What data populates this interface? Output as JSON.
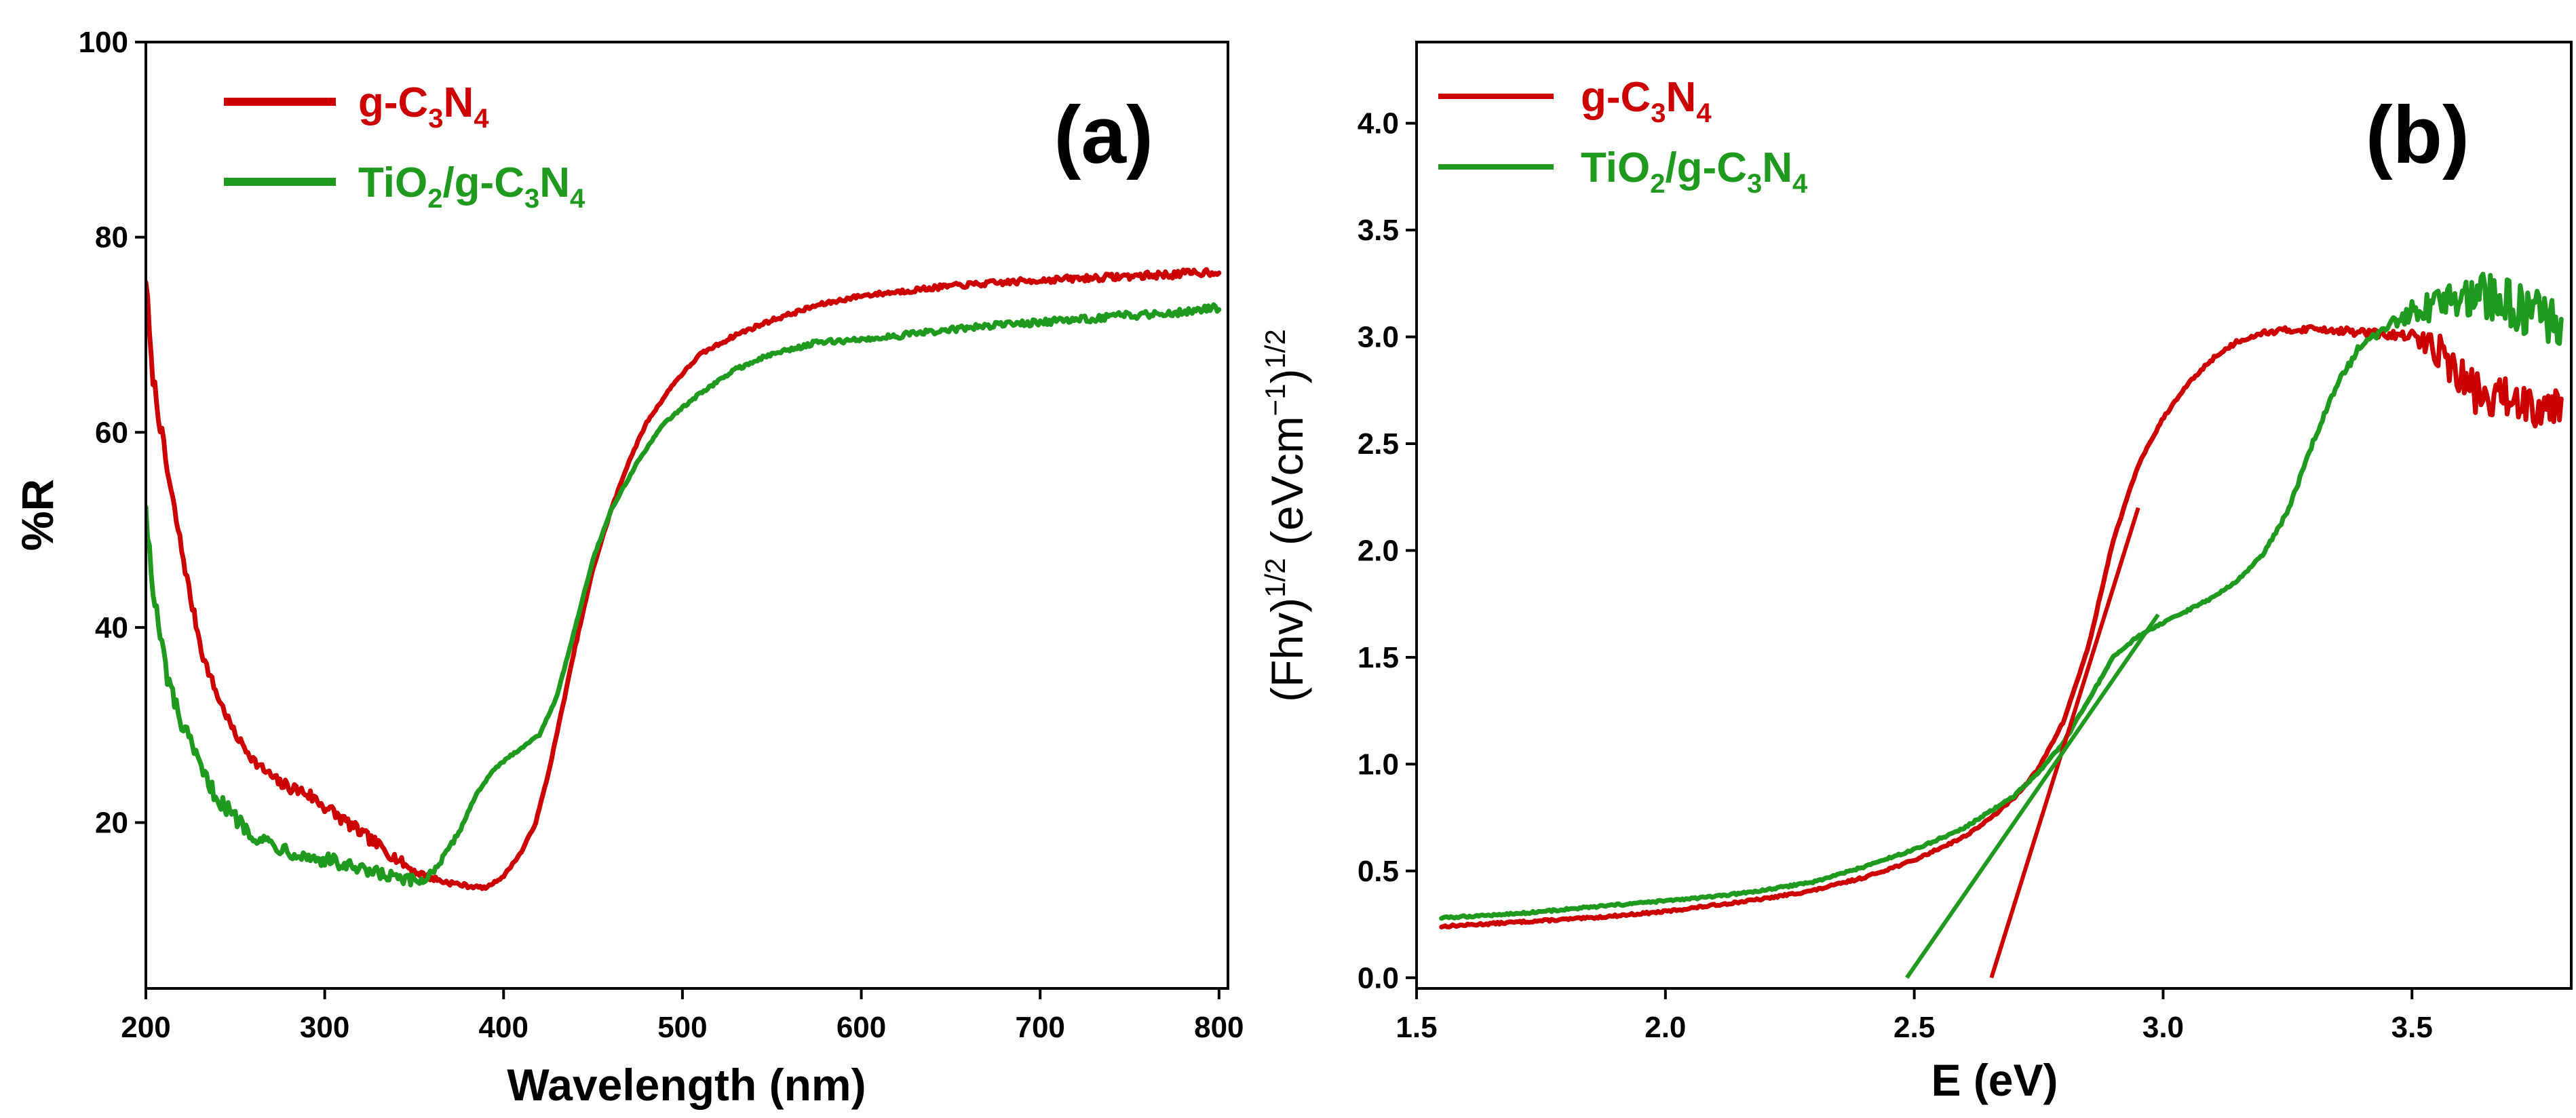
{
  "colors": {
    "red": "#cc0000",
    "green": "#1f9a1f"
  },
  "chart_data": [
    {
      "id": "a",
      "type": "line",
      "panel_label": "(a)",
      "xlabel": "Wavelength (nm)",
      "ylabel": "%R",
      "xlim": [
        200,
        805
      ],
      "ylim": [
        3,
        100
      ],
      "xticks": [
        200,
        300,
        400,
        500,
        600,
        700,
        800
      ],
      "xtick_labels": [
        "200",
        "300",
        "400",
        "500",
        "600",
        "700",
        "800"
      ],
      "yticks": [
        20,
        40,
        60,
        80,
        100
      ],
      "ytick_labels": [
        "20",
        "40",
        "60",
        "80",
        "100"
      ],
      "legend": {
        "position": "top-left",
        "entries": [
          {
            "base": "g-C",
            "sub1": "3",
            "mid": "N",
            "sub2": "4",
            "color": "red"
          },
          {
            "base": "TiO",
            "sub0": "2",
            "mid0": "/g-C",
            "sub1": "3",
            "mid": "N",
            "sub2": "4",
            "color": "green"
          }
        ]
      },
      "series": [
        {
          "name": "g-C3N4",
          "color": "red",
          "x": [
            200,
            203,
            207,
            212,
            218,
            225,
            232,
            240,
            250,
            262,
            275,
            290,
            305,
            320,
            335,
            350,
            365,
            380,
            390,
            400,
            410,
            418,
            425,
            432,
            440,
            450,
            460,
            470,
            480,
            495,
            510,
            530,
            550,
            575,
            600,
            625,
            650,
            675,
            700,
            725,
            750,
            775,
            800
          ],
          "y": [
            76,
            67,
            62,
            56,
            50,
            43,
            37,
            33,
            29,
            26,
            24,
            23,
            21,
            19,
            17,
            15,
            14,
            13.5,
            13.3,
            14.5,
            17,
            20,
            25,
            31,
            38,
            46,
            52,
            57,
            61,
            65,
            68,
            70,
            71.5,
            73,
            74,
            74.5,
            75,
            75.3,
            75.6,
            75.8,
            76,
            76.2,
            76.5
          ],
          "jitter": [
            1.2,
            1.0,
            0.9,
            0.8,
            0.7,
            0.6,
            0.5,
            0.5,
            0.4,
            0.5,
            0.6,
            0.7,
            0.7,
            0.6,
            0.6,
            0.4,
            0.3,
            0.2,
            0.1,
            0.1,
            0.1,
            0.1,
            0.1,
            0.1,
            0.1,
            0.1,
            0.1,
            0.1,
            0.1,
            0.1,
            0.15,
            0.2,
            0.2,
            0.2,
            0.2,
            0.25,
            0.25,
            0.3,
            0.3,
            0.35,
            0.35,
            0.4,
            0.4
          ]
        },
        {
          "name": "TiO2/g-C3N4",
          "color": "green",
          "x": [
            200,
            203,
            207,
            212,
            218,
            225,
            232,
            240,
            250,
            262,
            275,
            290,
            305,
            320,
            335,
            345,
            355,
            365,
            375,
            385,
            395,
            405,
            420,
            430,
            440,
            450,
            460,
            475,
            490,
            510,
            530,
            550,
            575,
            600,
            625,
            650,
            675,
            700,
            725,
            750,
            775,
            800
          ],
          "y": [
            53,
            45,
            40,
            35,
            31,
            28,
            25,
            22.5,
            20.5,
            18.5,
            17.5,
            16.5,
            16,
            15,
            14.5,
            14,
            14,
            16,
            19,
            23,
            25.5,
            27,
            29,
            33,
            40,
            47,
            52,
            57,
            61,
            64,
            66.5,
            68,
            69.2,
            69.5,
            70,
            70.5,
            71,
            71.3,
            71.6,
            72,
            72.3,
            72.8
          ],
          "jitter": [
            1.5,
            1.3,
            1.2,
            1.1,
            1.0,
            0.9,
            0.8,
            0.8,
            0.8,
            0.8,
            0.8,
            0.7,
            0.8,
            0.8,
            0.8,
            0.7,
            0.5,
            0.3,
            0.2,
            0.1,
            0.1,
            0.1,
            0.1,
            0.1,
            0.1,
            0.1,
            0.1,
            0.1,
            0.1,
            0.15,
            0.2,
            0.2,
            0.25,
            0.25,
            0.3,
            0.3,
            0.3,
            0.35,
            0.35,
            0.4,
            0.4,
            0.45
          ]
        }
      ]
    },
    {
      "id": "b",
      "type": "line",
      "panel_label": "(b)",
      "xlabel": "E (eV)",
      "ylabel_parts": {
        "a": "(Fhv)",
        "b": "1/2",
        "c": " (eVcm",
        "d": "−1",
        "e": ")",
        "f": "1/2"
      },
      "xlim": [
        1.5,
        3.82
      ],
      "ylim": [
        -0.05,
        4.38
      ],
      "xticks": [
        1.5,
        2.0,
        2.5,
        3.0,
        3.5
      ],
      "xtick_labels": [
        "1.5",
        "2.0",
        "2.5",
        "3.0",
        "3.5"
      ],
      "yticks": [
        0.0,
        0.5,
        1.0,
        1.5,
        2.0,
        2.5,
        3.0,
        3.5,
        4.0
      ],
      "ytick_labels": [
        "0.0",
        "0.5",
        "1.0",
        "1.5",
        "2.0",
        "2.5",
        "3.0",
        "3.5",
        "4.0"
      ],
      "legend": {
        "position": "top-left",
        "entries": [
          {
            "base": "g-C",
            "sub1": "3",
            "mid": "N",
            "sub2": "4",
            "color": "red"
          },
          {
            "base": "TiO",
            "sub0": "2",
            "mid0": "/g-C",
            "sub1": "3",
            "mid": "N",
            "sub2": "4",
            "color": "green"
          }
        ]
      },
      "series": [
        {
          "name": "g-C3N4",
          "color": "red",
          "x": [
            1.55,
            1.7,
            1.85,
            2.0,
            2.1,
            2.2,
            2.3,
            2.4,
            2.5,
            2.6,
            2.65,
            2.7,
            2.75,
            2.8,
            2.85,
            2.9,
            2.95,
            3.0,
            3.05,
            3.1,
            3.15,
            3.2,
            3.25,
            3.3,
            3.35,
            3.4,
            3.45,
            3.5,
            3.55,
            3.6,
            3.65,
            3.7,
            3.75,
            3.8
          ],
          "y": [
            0.24,
            0.26,
            0.28,
            0.31,
            0.34,
            0.37,
            0.41,
            0.47,
            0.55,
            0.66,
            0.74,
            0.84,
            0.98,
            1.2,
            1.55,
            2.05,
            2.4,
            2.62,
            2.78,
            2.9,
            2.98,
            3.02,
            3.03,
            3.04,
            3.03,
            3.02,
            3.01,
            3.0,
            2.95,
            2.8,
            2.7,
            2.72,
            2.68,
            2.7
          ],
          "jitter": [
            0.005,
            0.005,
            0.005,
            0.005,
            0.005,
            0.005,
            0.005,
            0.005,
            0.005,
            0.005,
            0.005,
            0.005,
            0.005,
            0.005,
            0.005,
            0.005,
            0.005,
            0.005,
            0.005,
            0.01,
            0.01,
            0.01,
            0.015,
            0.015,
            0.015,
            0.02,
            0.02,
            0.03,
            0.08,
            0.1,
            0.1,
            0.1,
            0.1,
            0.1
          ]
        },
        {
          "name": "TiO2/g-C3N4",
          "color": "green",
          "x": [
            1.55,
            1.7,
            1.85,
            2.0,
            2.1,
            2.2,
            2.3,
            2.4,
            2.5,
            2.6,
            2.7,
            2.75,
            2.8,
            2.85,
            2.9,
            2.95,
            3.0,
            3.05,
            3.1,
            3.15,
            3.2,
            3.25,
            3.3,
            3.35,
            3.4,
            3.45,
            3.5,
            3.55,
            3.6,
            3.65,
            3.7,
            3.75,
            3.8
          ],
          "y": [
            0.28,
            0.3,
            0.33,
            0.36,
            0.38,
            0.41,
            0.45,
            0.52,
            0.6,
            0.7,
            0.85,
            0.96,
            1.1,
            1.3,
            1.5,
            1.6,
            1.66,
            1.72,
            1.78,
            1.86,
            1.98,
            2.18,
            2.5,
            2.78,
            2.97,
            3.05,
            3.12,
            3.15,
            3.2,
            3.18,
            3.15,
            3.1,
            3.08
          ],
          "jitter": [
            0.005,
            0.005,
            0.005,
            0.005,
            0.005,
            0.005,
            0.005,
            0.005,
            0.005,
            0.005,
            0.005,
            0.005,
            0.005,
            0.005,
            0.005,
            0.005,
            0.005,
            0.005,
            0.005,
            0.005,
            0.005,
            0.01,
            0.01,
            0.015,
            0.02,
            0.03,
            0.05,
            0.08,
            0.1,
            0.12,
            0.12,
            0.12,
            0.12
          ]
        }
      ],
      "fit_lines": [
        {
          "name": "g-C3N4 tangent",
          "color": "red",
          "x1": 2.655,
          "y1": 0.0,
          "x2": 2.95,
          "y2": 2.2
        },
        {
          "name": "TiO2/g-C3N4 tangent",
          "color": "green",
          "x1": 2.485,
          "y1": 0.0,
          "x2": 2.99,
          "y2": 1.7
        }
      ]
    }
  ]
}
